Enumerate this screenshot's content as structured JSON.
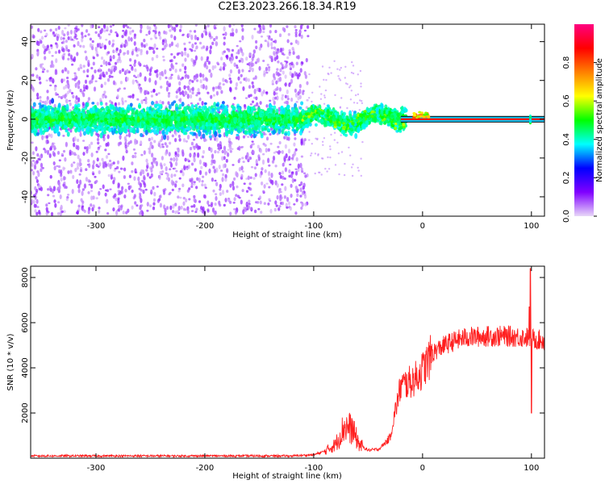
{
  "title": "C2E3.2023.266.18.34.R19",
  "chart_data": [
    {
      "type": "heatmap",
      "xlabel": "Height of straight line (km)",
      "ylabel": "Frequency (Hz)",
      "xlim": [
        -360,
        112
      ],
      "ylim": [
        -50,
        49
      ],
      "x_ticks": [
        -300,
        -200,
        -100,
        0,
        100
      ],
      "y_ticks": [
        -40,
        -20,
        0,
        20,
        40
      ],
      "colorbar": {
        "label": "Normalized spectral amplitude",
        "range": [
          0.0,
          1.0
        ],
        "ticks": [
          0.0,
          0.2,
          0.4,
          0.6,
          0.8
        ],
        "colors": [
          "#e8d8f8",
          "#8000ff",
          "#0000ff",
          "#00ffff",
          "#00ff00",
          "#ffff00",
          "#ff8000",
          "#ff0000",
          "#ff0080"
        ]
      },
      "features": {
        "scattered_noise_x": [
          -360,
          -105
        ],
        "scattered_noise_freq_spread": 49,
        "core_band_freq_halfwidth": 8,
        "tone_line_x": [
          -20,
          112
        ],
        "tone_line_freq": 0,
        "tone_line_amplitude": 0.85
      }
    },
    {
      "type": "line",
      "xlabel": "Height of straight line (km)",
      "ylabel": "SNR (10 * v/v)",
      "xlim": [
        -360,
        112
      ],
      "ylim": [
        0,
        8500
      ],
      "x_ticks": [
        -300,
        -200,
        -100,
        0,
        100
      ],
      "y_ticks": [
        2000,
        4000,
        6000,
        8000
      ],
      "series_color": "#ff2020",
      "profile": {
        "x": [
          -360,
          -300,
          -200,
          -120,
          -100,
          -90,
          -80,
          -72,
          -65,
          -58,
          -50,
          -40,
          -30,
          -25,
          -20,
          -15,
          -10,
          -5,
          0,
          10,
          20,
          30,
          40,
          60,
          80,
          95,
          100,
          105,
          112
        ],
        "y": [
          100,
          100,
          100,
          100,
          150,
          300,
          600,
          1400,
          1300,
          600,
          350,
          400,
          900,
          2100,
          3200,
          3300,
          3400,
          3600,
          3900,
          4700,
          5000,
          5200,
          5350,
          5400,
          5400,
          5350,
          5300,
          5250,
          5200
        ]
      },
      "spikes": [
        {
          "x": 98,
          "y": 6700
        },
        {
          "x": 99,
          "y": 8400
        },
        {
          "x": 100,
          "y": 2000
        }
      ]
    }
  ]
}
